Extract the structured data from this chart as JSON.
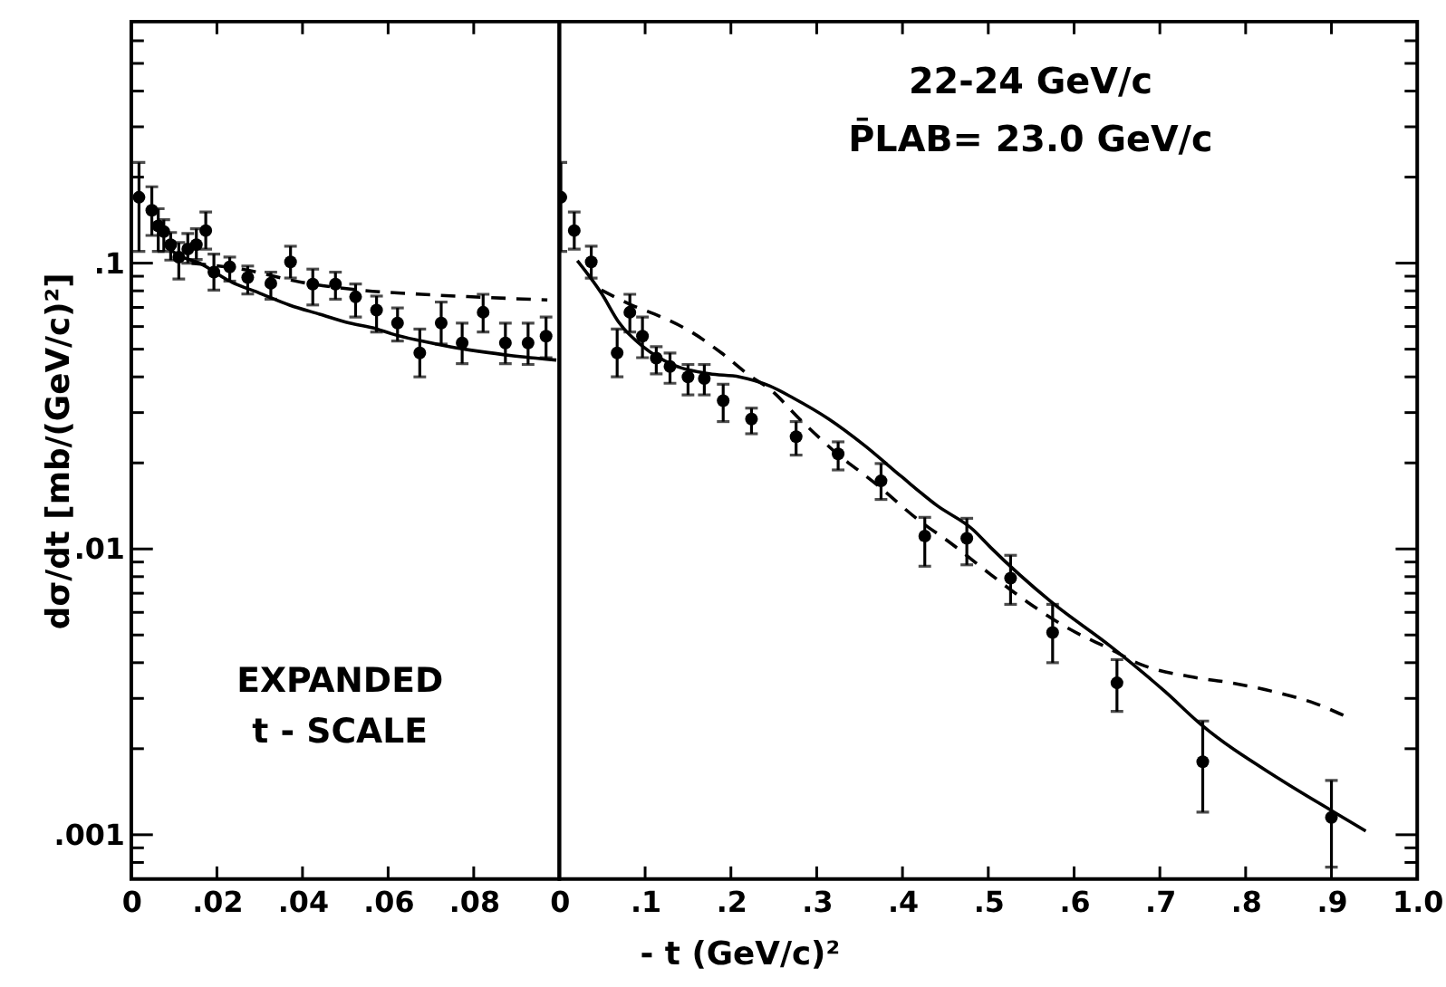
{
  "chart_data": [
    {
      "type": "scatter",
      "xlim": [
        0,
        0.1
      ],
      "ylim": [
        0.0007,
        0.7
      ],
      "log": "y",
      "ylabel": "dσ/dt [mb/(GeV/c)²]",
      "xticks": [
        {
          "value": 0,
          "label": "0"
        },
        {
          "value": 0.02,
          "label": ".02"
        },
        {
          "value": 0.04,
          "label": ".04"
        },
        {
          "value": 0.06,
          "label": ".06"
        },
        {
          "value": 0.08,
          "label": ".08"
        }
      ],
      "yticks": [
        {
          "value": 0.0008,
          "label": null
        },
        {
          "value": 0.0009,
          "label": null
        },
        {
          "value": 0.001,
          "label": ".001"
        },
        {
          "value": 0.002,
          "label": null
        },
        {
          "value": 0.003,
          "label": null
        },
        {
          "value": 0.004,
          "label": null
        },
        {
          "value": 0.005,
          "label": null
        },
        {
          "value": 0.006,
          "label": null
        },
        {
          "value": 0.007,
          "label": null
        },
        {
          "value": 0.008,
          "label": null
        },
        {
          "value": 0.009,
          "label": null
        },
        {
          "value": 0.01,
          "label": ".01"
        },
        {
          "value": 0.02,
          "label": null
        },
        {
          "value": 0.03,
          "label": null
        },
        {
          "value": 0.04,
          "label": null
        },
        {
          "value": 0.05,
          "label": null
        },
        {
          "value": 0.06,
          "label": null
        },
        {
          "value": 0.07,
          "label": null
        },
        {
          "value": 0.08,
          "label": null
        },
        {
          "value": 0.09,
          "label": null
        },
        {
          "value": 0.1,
          "label": ".1"
        },
        {
          "value": 0.2,
          "label": null
        },
        {
          "value": 0.3,
          "label": null
        },
        {
          "value": 0.4,
          "label": null
        },
        {
          "value": 0.5,
          "label": null
        },
        {
          "value": 0.6,
          "label": null
        }
      ],
      "annotations": [
        "EXPANDED",
        "t - SCALE"
      ],
      "series": [
        {
          "type": "line",
          "color": "#000000",
          "line_style": "solid",
          "marker": "none",
          "x": [
            0.0076,
            0.0104,
            0.016,
            0.023,
            0.03,
            0.037,
            0.044,
            0.051,
            0.0573,
            0.0608,
            0.0678,
            0.0748,
            0.0818,
            0.0888,
            0.0993
          ],
          "values": [
            0.118,
            0.108,
            0.1,
            0.0865,
            0.0785,
            0.0713,
            0.0663,
            0.0617,
            0.0589,
            0.0566,
            0.0534,
            0.0509,
            0.049,
            0.0475,
            0.0458
          ]
        },
        {
          "type": "line",
          "color": "#000000",
          "line_style": "dashed",
          "marker": "none",
          "x": [
            0.0141,
            0.0258,
            0.0398,
            0.0538,
            0.0678,
            0.0818,
            0.0972
          ],
          "values": [
            0.1,
            0.0953,
            0.0857,
            0.0804,
            0.0778,
            0.076,
            0.0743
          ]
        },
        {
          "color": "#000000",
          "marker": "circle",
          "x": [
            0.0018,
            0.0048,
            0.0063,
            0.0076,
            0.0092,
            0.0111,
            0.0132,
            0.0152,
            0.0174,
            0.0193,
            0.023,
            0.0272,
            0.0326,
            0.0372,
            0.0424,
            0.0477,
            0.0524,
            0.0573,
            0.0622,
            0.0674,
            0.0724,
            0.0773,
            0.0822,
            0.0874,
            0.0927,
            0.0969
          ],
          "values": [
            0.17,
            0.153,
            0.135,
            0.129,
            0.116,
            0.105,
            0.112,
            0.116,
            0.13,
            0.093,
            0.097,
            0.089,
            0.085,
            0.101,
            0.0845,
            0.0845,
            0.0762,
            0.0685,
            0.0617,
            0.0485,
            0.0617,
            0.0526,
            0.0673,
            0.0526,
            0.0526,
            0.0555
          ],
          "errors": [
            [
              0.11,
              0.225
            ],
            [
              0.125,
              0.185
            ],
            [
              0.11,
              0.155
            ],
            [
              0.11,
              0.142
            ],
            [
              0.1025,
              0.128
            ],
            [
              0.088,
              0.118
            ],
            [
              0.1,
              0.127
            ],
            [
              0.103,
              0.132
            ],
            [
              0.112,
              0.151
            ],
            [
              0.0805,
              0.1076
            ],
            [
              0.0865,
              0.105
            ],
            [
              0.078,
              0.0977
            ],
            [
              0.0748,
              0.093
            ],
            [
              0.0887,
              0.1146
            ],
            [
              0.0714,
              0.0953
            ],
            [
              0.0748,
              0.093
            ],
            [
              0.0648,
              0.0845
            ],
            [
              0.0574,
              0.0767
            ],
            [
              0.0534,
              0.0697
            ],
            [
              0.04,
              0.0588
            ],
            [
              0.0521,
              0.0731
            ],
            [
              0.0445,
              0.0617
            ],
            [
              0.0574,
              0.0778
            ],
            [
              0.0445,
              0.0617
            ],
            [
              0.0442,
              0.0617
            ],
            [
              0.0467,
              0.0648
            ]
          ]
        }
      ]
    },
    {
      "type": "scatter",
      "xlim": [
        0,
        1
      ],
      "ylim": [
        0.0007,
        0.7
      ],
      "log": "y",
      "xlabel": "- t (GeV/c)²",
      "tick_labels": "x",
      "xticks": [
        {
          "value": 0,
          "label": "0"
        },
        {
          "value": 0.1,
          "label": ".1"
        },
        {
          "value": 0.2,
          "label": ".2"
        },
        {
          "value": 0.3,
          "label": ".3"
        },
        {
          "value": 0.4,
          "label": ".4"
        },
        {
          "value": 0.5,
          "label": ".5"
        },
        {
          "value": 0.6,
          "label": ".6"
        },
        {
          "value": 0.7,
          "label": ".7"
        },
        {
          "value": 0.8,
          "label": ".8"
        },
        {
          "value": 0.9,
          "label": ".9"
        },
        {
          "value": 1,
          "label": "1.0"
        }
      ],
      "yticks": [
        {
          "value": 0.0008,
          "label": null
        },
        {
          "value": 0.0009,
          "label": null
        },
        {
          "value": 0.001,
          "label": null
        },
        {
          "value": 0.002,
          "label": null
        },
        {
          "value": 0.003,
          "label": null
        },
        {
          "value": 0.004,
          "label": null
        },
        {
          "value": 0.005,
          "label": null
        },
        {
          "value": 0.006,
          "label": null
        },
        {
          "value": 0.007,
          "label": null
        },
        {
          "value": 0.008,
          "label": null
        },
        {
          "value": 0.009,
          "label": null
        },
        {
          "value": 0.01,
          "label": null
        },
        {
          "value": 0.02,
          "label": null
        },
        {
          "value": 0.03,
          "label": null
        },
        {
          "value": 0.04,
          "label": null
        },
        {
          "value": 0.05,
          "label": null
        },
        {
          "value": 0.06,
          "label": null
        },
        {
          "value": 0.07,
          "label": null
        },
        {
          "value": 0.08,
          "label": null
        },
        {
          "value": 0.09,
          "label": null
        },
        {
          "value": 0.1,
          "label": null
        },
        {
          "value": 0.2,
          "label": null
        },
        {
          "value": 0.3,
          "label": null
        },
        {
          "value": 0.4,
          "label": null
        },
        {
          "value": 0.5,
          "label": null
        },
        {
          "value": 0.6,
          "label": null
        }
      ],
      "annotations": [
        "22-24 GeV/c",
        "P̄LAB= 23.0 GeV/c"
      ],
      "series": [
        {
          "type": "line",
          "color": "#000000",
          "line_style": "solid",
          "marker": "none",
          "x": [
            0.021,
            0.049,
            0.07,
            0.098,
            0.133,
            0.175,
            0.21,
            0.245,
            0.273,
            0.314,
            0.356,
            0.398,
            0.44,
            0.482,
            0.503,
            0.573,
            0.643,
            0.706,
            0.748,
            0.839,
            0.901,
            0.94
          ],
          "values": [
            0.102,
            0.0785,
            0.0617,
            0.0509,
            0.044,
            0.041,
            0.04,
            0.0372,
            0.0337,
            0.0285,
            0.023,
            0.018,
            0.0142,
            0.0117,
            0.0101,
            0.00654,
            0.00455,
            0.00317,
            0.00243,
            0.00157,
            0.00121,
            0.00103
          ]
        },
        {
          "type": "line",
          "color": "#000000",
          "line_style": "dashed",
          "marker": "none",
          "x": [
            0.049,
            0.084,
            0.119,
            0.154,
            0.189,
            0.224,
            0.245,
            0.28,
            0.321,
            0.37,
            0.419,
            0.454,
            0.503,
            0.545,
            0.594,
            0.643,
            0.678,
            0.734,
            0.783,
            0.832,
            0.881,
            0.915
          ],
          "values": [
            0.0805,
            0.0714,
            0.0648,
            0.0574,
            0.0485,
            0.04,
            0.0363,
            0.0285,
            0.0219,
            0.0168,
            0.0126,
            0.0106,
            0.00813,
            0.00654,
            0.00526,
            0.00445,
            0.00394,
            0.00358,
            0.0034,
            0.00317,
            0.00288,
            0.00261
          ]
        },
        {
          "color": "#000000",
          "marker": "circle",
          "x": [
            0.0018,
            0.0174,
            0.0372,
            0.0674,
            0.0822,
            0.0969,
            0.113,
            0.129,
            0.15,
            0.169,
            0.191,
            0.224,
            0.276,
            0.325,
            0.375,
            0.426,
            0.475,
            0.526,
            0.575,
            0.65,
            0.75,
            0.9
          ],
          "values": [
            0.17,
            0.13,
            0.101,
            0.0485,
            0.0673,
            0.0555,
            0.0465,
            0.0435,
            0.04,
            0.0395,
            0.033,
            0.0285,
            0.0247,
            0.0215,
            0.0173,
            0.0111,
            0.0109,
            0.0079,
            0.0051,
            0.0034,
            0.0018,
            0.00115
          ],
          "errors": [
            [
              0.11,
              0.225
            ],
            [
              0.112,
              0.151
            ],
            [
              0.0887,
              0.1146
            ],
            [
              0.04,
              0.0588
            ],
            [
              0.0574,
              0.0778
            ],
            [
              0.0467,
              0.0648
            ],
            [
              0.041,
              0.051
            ],
            [
              0.038,
              0.0485
            ],
            [
              0.0346,
              0.0442
            ],
            [
              0.0346,
              0.0442
            ],
            [
              0.0279,
              0.0377
            ],
            [
              0.0253,
              0.0311
            ],
            [
              0.0213,
              0.0279
            ],
            [
              0.0189,
              0.0237
            ],
            [
              0.0149,
              0.0199
            ],
            [
              0.0087,
              0.0129
            ],
            [
              0.0088,
              0.0128
            ],
            [
              0.0064,
              0.0095
            ],
            [
              0.004,
              0.0064
            ],
            [
              0.0027,
              0.0041
            ],
            [
              0.0012,
              0.0025
            ],
            [
              0.00077,
              0.00155
            ]
          ]
        }
      ]
    }
  ]
}
